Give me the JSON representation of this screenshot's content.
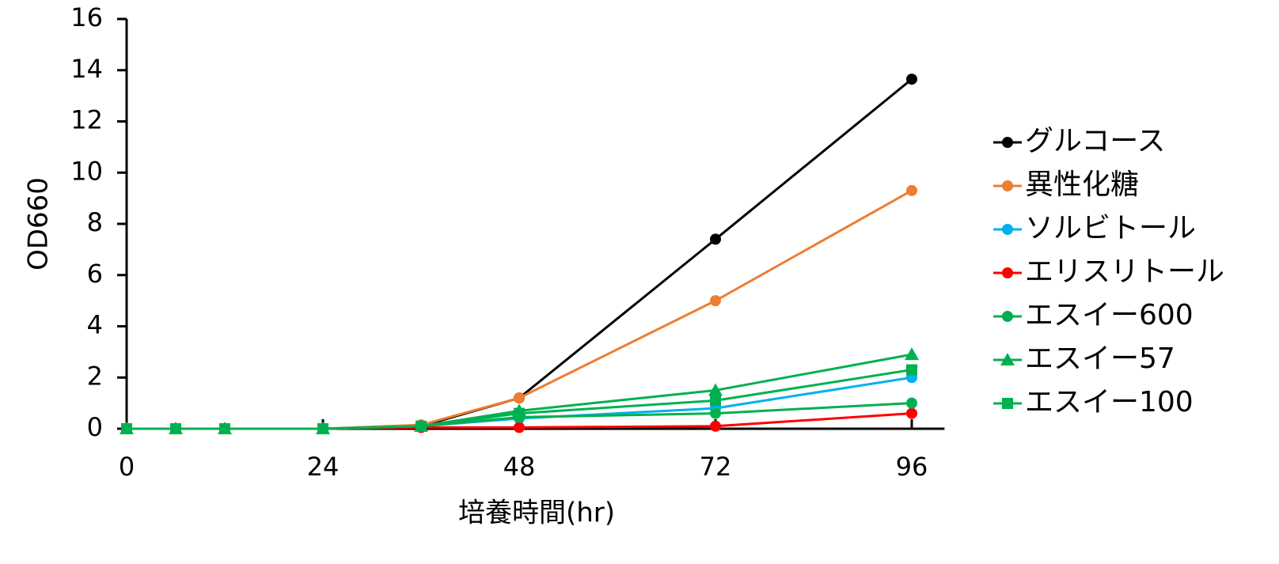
{
  "chart_data": {
    "type": "line",
    "x_label": "培養時間(hr)",
    "y_label": "OD660",
    "x": [
      0,
      6,
      12,
      24,
      36,
      48,
      72,
      96
    ],
    "xlim": [
      0,
      100
    ],
    "xticks": [
      0,
      24,
      48,
      72,
      96
    ],
    "ylim": [
      0,
      16
    ],
    "yticks": [
      0,
      2,
      4,
      6,
      8,
      10,
      12,
      14,
      16
    ],
    "legend": "right",
    "series": [
      {
        "name": "グルコース",
        "color": "#000000",
        "marker": "circle",
        "values": [
          0,
          0,
          0,
          0,
          0.1,
          1.2,
          7.4,
          13.65
        ]
      },
      {
        "name": "異性化糖",
        "color": "#ed7d31",
        "marker": "circle",
        "values": [
          0,
          0,
          0,
          0,
          0.15,
          1.2,
          5.0,
          9.3
        ]
      },
      {
        "name": "ソルビトール",
        "color": "#00b0f0",
        "marker": "circle",
        "values": [
          0,
          0,
          0,
          0,
          0.1,
          0.4,
          0.8,
          2.0
        ]
      },
      {
        "name": "エリスリトール",
        "color": "#ff0000",
        "marker": "circle",
        "values": [
          0,
          0,
          0,
          0,
          0.05,
          0.05,
          0.1,
          0.6
        ]
      },
      {
        "name": "エスイー600",
        "color": "#00b050",
        "marker": "circle",
        "values": [
          0,
          0,
          0,
          0,
          0.1,
          0.45,
          0.6,
          1.0
        ]
      },
      {
        "name": "エスイー57",
        "color": "#00b050",
        "marker": "triangle",
        "values": [
          0,
          0,
          0,
          0,
          0.1,
          0.7,
          1.5,
          2.9
        ]
      },
      {
        "name": "エスイー100",
        "color": "#00b050",
        "marker": "square",
        "values": [
          0,
          0,
          0,
          0,
          0.1,
          0.6,
          1.1,
          2.3
        ]
      }
    ]
  }
}
